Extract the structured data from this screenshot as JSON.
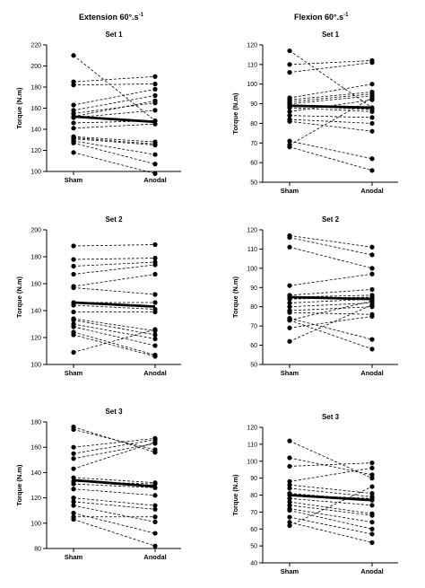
{
  "header": {
    "left_title": "Extension 60°.s",
    "left_title_exp": "-1",
    "right_title": "Flexion 60°.s",
    "right_title_exp": "-1"
  },
  "chart_data": [
    {
      "type": "line",
      "title": "Set 1",
      "ylabel": "Torque (N.m)",
      "categories": [
        "Sham",
        "Anodal"
      ],
      "ylim": [
        100,
        220
      ],
      "yticks": [
        100,
        120,
        140,
        160,
        180,
        200,
        220
      ],
      "pairs": [
        [
          210,
          148
        ],
        [
          185,
          190
        ],
        [
          182,
          183
        ],
        [
          163,
          178
        ],
        [
          158,
          172
        ],
        [
          155,
          165
        ],
        [
          152,
          167
        ],
        [
          151,
          158
        ],
        [
          146,
          148
        ],
        [
          141,
          145
        ],
        [
          133,
          128
        ],
        [
          132,
          126
        ],
        [
          131,
          125
        ],
        [
          129,
          116
        ],
        [
          127,
          107
        ],
        [
          118,
          98
        ]
      ],
      "mean": [
        152,
        147
      ]
    },
    {
      "type": "line",
      "title": "Set 1",
      "ylabel": "Torque (N.m)",
      "categories": [
        "Sham",
        "Anodal"
      ],
      "ylim": [
        50,
        120
      ],
      "yticks": [
        50,
        60,
        70,
        80,
        90,
        100,
        110,
        120
      ],
      "pairs": [
        [
          117,
          88
        ],
        [
          110,
          112
        ],
        [
          106,
          111
        ],
        [
          93,
          100
        ],
        [
          92,
          96
        ],
        [
          91,
          95
        ],
        [
          90,
          94
        ],
        [
          89,
          87
        ],
        [
          88,
          86
        ],
        [
          86,
          92
        ],
        [
          84,
          83
        ],
        [
          82,
          80
        ],
        [
          81,
          76
        ],
        [
          71,
          62
        ],
        [
          69,
          93
        ],
        [
          68,
          56
        ]
      ],
      "mean": [
        89,
        88
      ]
    },
    {
      "type": "line",
      "title": "Set 2",
      "ylabel": "Torque (N.m)",
      "categories": [
        "Sham",
        "Anodal"
      ],
      "ylim": [
        100,
        200
      ],
      "yticks": [
        100,
        120,
        140,
        160,
        180,
        200
      ],
      "pairs": [
        [
          188,
          189
        ],
        [
          178,
          179
        ],
        [
          173,
          176
        ],
        [
          167,
          174
        ],
        [
          158,
          167
        ],
        [
          157,
          152
        ],
        [
          146,
          146
        ],
        [
          144,
          141
        ],
        [
          139,
          139
        ],
        [
          134,
          125
        ],
        [
          133,
          122
        ],
        [
          130,
          119
        ],
        [
          128,
          114
        ],
        [
          124,
          107
        ],
        [
          122,
          106
        ],
        [
          109,
          126
        ]
      ],
      "mean": [
        146,
        143
      ]
    },
    {
      "type": "line",
      "title": "Set 2",
      "ylabel": "Torque (N.m)",
      "categories": [
        "Sham",
        "Anodal"
      ],
      "ylim": [
        50,
        120
      ],
      "yticks": [
        50,
        60,
        70,
        80,
        90,
        100,
        110,
        120
      ],
      "pairs": [
        [
          117,
          111
        ],
        [
          116,
          107
        ],
        [
          111,
          100
        ],
        [
          91,
          97
        ],
        [
          86,
          89
        ],
        [
          85,
          86
        ],
        [
          84,
          85
        ],
        [
          82,
          84
        ],
        [
          80,
          82
        ],
        [
          78,
          80
        ],
        [
          77,
          76
        ],
        [
          74,
          63
        ],
        [
          73,
          58
        ],
        [
          73,
          83
        ],
        [
          69,
          75
        ],
        [
          62,
          81
        ]
      ],
      "mean": [
        85,
        84
      ]
    },
    {
      "type": "line",
      "title": "Set 3",
      "ylabel": "Torque (N.m)",
      "categories": [
        "Sham",
        "Anodal"
      ],
      "ylim": [
        80,
        180
      ],
      "yticks": [
        80,
        100,
        120,
        140,
        160,
        180
      ],
      "pairs": [
        [
          176,
          156
        ],
        [
          174,
          158
        ],
        [
          160,
          167
        ],
        [
          155,
          166
        ],
        [
          151,
          163
        ],
        [
          143,
          164
        ],
        [
          136,
          132
        ],
        [
          133,
          131
        ],
        [
          131,
          128
        ],
        [
          127,
          122
        ],
        [
          120,
          114
        ],
        [
          117,
          111
        ],
        [
          114,
          101
        ],
        [
          108,
          92
        ],
        [
          105,
          105
        ],
        [
          103,
          82
        ]
      ],
      "mean": [
        134,
        129
      ]
    },
    {
      "type": "line",
      "title": "Set 3",
      "ylabel": "Torque (N.m)",
      "categories": [
        "Sham",
        "Anodal"
      ],
      "ylim": [
        40,
        120
      ],
      "yticks": [
        40,
        50,
        60,
        70,
        80,
        90,
        100,
        110,
        120
      ],
      "pairs": [
        [
          112,
          90
        ],
        [
          102,
          92
        ],
        [
          97,
          99
        ],
        [
          88,
          96
        ],
        [
          86,
          81
        ],
        [
          84,
          79
        ],
        [
          81,
          77
        ],
        [
          80,
          78
        ],
        [
          78,
          74
        ],
        [
          76,
          69
        ],
        [
          74,
          68
        ],
        [
          72,
          64
        ],
        [
          71,
          60
        ],
        [
          67,
          57
        ],
        [
          64,
          52
        ],
        [
          62,
          85
        ]
      ],
      "mean": [
        80,
        77
      ]
    }
  ]
}
